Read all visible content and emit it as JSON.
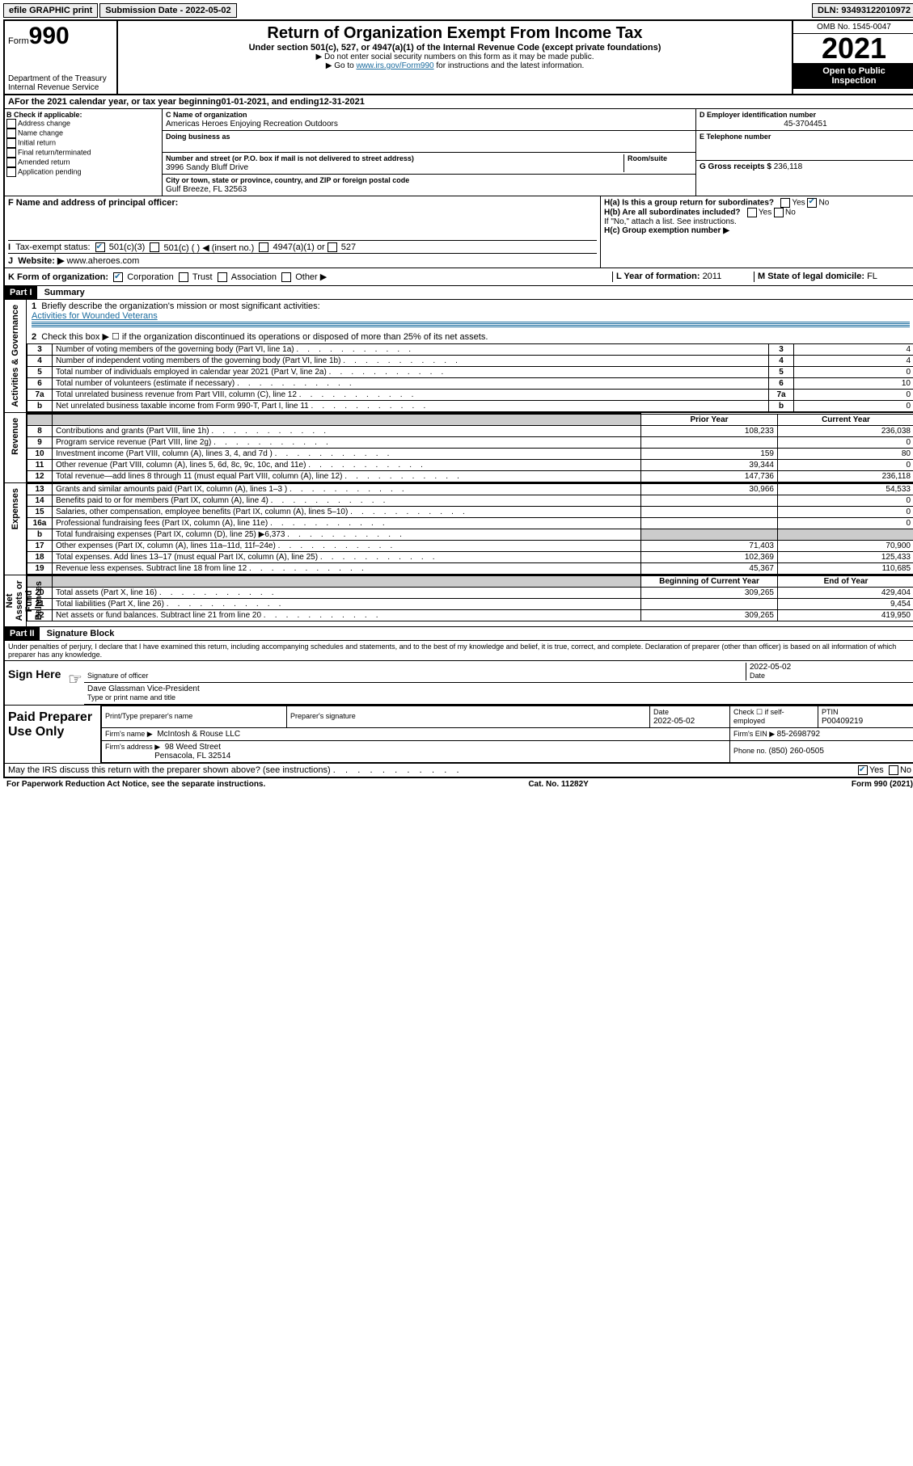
{
  "topbar": {
    "efile": "efile GRAPHIC print",
    "subdate_label": "Submission Date - ",
    "subdate": "2022-05-02",
    "dln_label": "DLN: ",
    "dln": "93493122010972"
  },
  "header": {
    "form_word": "Form",
    "form_no": "990",
    "dept": "Department of the Treasury",
    "irs": "Internal Revenue Service",
    "title": "Return of Organization Exempt From Income Tax",
    "sub1": "Under section 501(c), 527, or 4947(a)(1) of the Internal Revenue Code (except private foundations)",
    "sub2": "▶ Do not enter social security numbers on this form as it may be made public.",
    "sub3_pre": "▶ Go to ",
    "sub3_link": "www.irs.gov/Form990",
    "sub3_post": " for instructions and the latest information.",
    "omb": "OMB No. 1545-0047",
    "year": "2021",
    "inspect1": "Open to Public",
    "inspect2": "Inspection"
  },
  "A": {
    "text_pre": "For the 2021 calendar year, or tax year beginning ",
    "begin": "01-01-2021",
    "mid": " , and ending ",
    "end": "12-31-2021"
  },
  "B": {
    "label": "B Check if applicable:",
    "items": [
      "Address change",
      "Name change",
      "Initial return",
      "Final return/terminated",
      "Amended return",
      "Application pending"
    ]
  },
  "C": {
    "label": "C Name of organization",
    "name": "Americas Heroes Enjoying Recreation Outdoors",
    "dba_label": "Doing business as",
    "street_label": "Number and street (or P.O. box if mail is not delivered to street address)",
    "room_label": "Room/suite",
    "street": "3996 Sandy Bluff Drive",
    "city_label": "City or town, state or province, country, and ZIP or foreign postal code",
    "city": "Gulf Breeze, FL  32563"
  },
  "D": {
    "label": "D Employer identification number",
    "val": "45-3704451"
  },
  "E": {
    "label": "E Telephone number"
  },
  "G": {
    "label": "G Gross receipts $ ",
    "val": "236,118"
  },
  "F": {
    "label": "F  Name and address of principal officer:"
  },
  "H": {
    "a_label": "H(a)  Is this a group return for subordinates?",
    "b_label": "H(b)  Are all subordinates included?",
    "b_note": "If \"No,\" attach a list. See instructions.",
    "c_label": "H(c)  Group exemption number ▶",
    "yes": "Yes",
    "no": "No"
  },
  "I": {
    "label": "Tax-exempt status:",
    "opt1": "501(c)(3)",
    "opt2": "501(c) (  ) ◀ (insert no.)",
    "opt3": "4947(a)(1) or",
    "opt4": "527"
  },
  "J": {
    "label": "Website: ▶",
    "val": "www.aheroes.com"
  },
  "K": {
    "label": "K Form of organization:",
    "opts": [
      "Corporation",
      "Trust",
      "Association",
      "Other ▶"
    ],
    "checked": 0
  },
  "L": {
    "label": "L Year of formation: ",
    "val": "2011"
  },
  "M": {
    "label": "M State of legal domicile: ",
    "val": "FL"
  },
  "partI": {
    "hdr": "Part I",
    "title": "Summary"
  },
  "summary": {
    "q1_label": "Briefly describe the organization's mission or most significant activities:",
    "q1_val": "Activities for Wounded Veterans",
    "q2": "Check this box ▶ ☐  if the organization discontinued its operations or disposed of more than 25% of its net assets.",
    "side1": "Activities & Governance",
    "side2": "Revenue",
    "side3": "Expenses",
    "side4": "Net Assets or Fund Balances",
    "col_prior": "Prior Year",
    "col_current": "Current Year",
    "col_boy": "Beginning of Current Year",
    "col_eoy": "End of Year",
    "rows_top": [
      {
        "n": "3",
        "d": "Number of voting members of the governing body (Part VI, line 1a)",
        "v": "4"
      },
      {
        "n": "4",
        "d": "Number of independent voting members of the governing body (Part VI, line 1b)",
        "v": "4"
      },
      {
        "n": "5",
        "d": "Total number of individuals employed in calendar year 2021 (Part V, line 2a)",
        "v": "0"
      },
      {
        "n": "6",
        "d": "Total number of volunteers (estimate if necessary)",
        "v": "10"
      },
      {
        "n": "7a",
        "d": "Total unrelated business revenue from Part VIII, column (C), line 12",
        "v": "0"
      },
      {
        "n": "b",
        "d": "Net unrelated business taxable income from Form 990-T, Part I, line 11",
        "v": "0"
      }
    ],
    "rows_rev": [
      {
        "n": "8",
        "d": "Contributions and grants (Part VIII, line 1h)",
        "p": "108,233",
        "c": "236,038"
      },
      {
        "n": "9",
        "d": "Program service revenue (Part VIII, line 2g)",
        "p": "",
        "c": "0"
      },
      {
        "n": "10",
        "d": "Investment income (Part VIII, column (A), lines 3, 4, and 7d )",
        "p": "159",
        "c": "80"
      },
      {
        "n": "11",
        "d": "Other revenue (Part VIII, column (A), lines 5, 6d, 8c, 9c, 10c, and 11e)",
        "p": "39,344",
        "c": "0"
      },
      {
        "n": "12",
        "d": "Total revenue—add lines 8 through 11 (must equal Part VIII, column (A), line 12)",
        "p": "147,736",
        "c": "236,118"
      }
    ],
    "rows_exp": [
      {
        "n": "13",
        "d": "Grants and similar amounts paid (Part IX, column (A), lines 1–3 )",
        "p": "30,966",
        "c": "54,533"
      },
      {
        "n": "14",
        "d": "Benefits paid to or for members (Part IX, column (A), line 4)",
        "p": "",
        "c": "0"
      },
      {
        "n": "15",
        "d": "Salaries, other compensation, employee benefits (Part IX, column (A), lines 5–10)",
        "p": "",
        "c": "0"
      },
      {
        "n": "16a",
        "d": "Professional fundraising fees (Part IX, column (A), line 11e)",
        "p": "",
        "c": "0"
      },
      {
        "n": "b",
        "d": "Total fundraising expenses (Part IX, column (D), line 25) ▶6,373",
        "p": "GREY",
        "c": "GREY"
      },
      {
        "n": "17",
        "d": "Other expenses (Part IX, column (A), lines 11a–11d, 11f–24e)",
        "p": "71,403",
        "c": "70,900"
      },
      {
        "n": "18",
        "d": "Total expenses. Add lines 13–17 (must equal Part IX, column (A), line 25)",
        "p": "102,369",
        "c": "125,433"
      },
      {
        "n": "19",
        "d": "Revenue less expenses. Subtract line 18 from line 12",
        "p": "45,367",
        "c": "110,685"
      }
    ],
    "rows_net": [
      {
        "n": "20",
        "d": "Total assets (Part X, line 16)",
        "p": "309,265",
        "c": "429,404"
      },
      {
        "n": "21",
        "d": "Total liabilities (Part X, line 26)",
        "p": "",
        "c": "9,454"
      },
      {
        "n": "22",
        "d": "Net assets or fund balances. Subtract line 21 from line 20",
        "p": "309,265",
        "c": "419,950"
      }
    ]
  },
  "partII": {
    "hdr": "Part II",
    "title": "Signature Block"
  },
  "sig": {
    "jurat": "Under penalties of perjury, I declare that I have examined this return, including accompanying schedules and statements, and to the best of my knowledge and belief, it is true, correct, and complete. Declaration of preparer (other than officer) is based on all information of which preparer has any knowledge.",
    "sign_here": "Sign Here",
    "sig_officer": "Signature of officer",
    "date": "Date",
    "date_val": "2022-05-02",
    "name": "Dave Glassman  Vice-President",
    "name_label": "Type or print name and title"
  },
  "paid": {
    "title": "Paid Preparer Use Only",
    "h1": "Print/Type preparer's name",
    "h2": "Preparer's signature",
    "h3": "Date",
    "h3v": "2022-05-02",
    "h4": "Check ☐ if self-employed",
    "h5": "PTIN",
    "h5v": "P00409219",
    "firm_label": "Firm's name    ▶",
    "firm": "McIntosh & Rouse LLC",
    "ein_label": "Firm's EIN ▶ ",
    "ein": "85-2698792",
    "addr_label": "Firm's address ▶",
    "addr1": "98 Weed Street",
    "addr2": "Pensacola, FL  32514",
    "phone_label": "Phone no. ",
    "phone": "(850) 260-0505"
  },
  "footer": {
    "discuss": "May the IRS discuss this return with the preparer shown above? (see instructions)",
    "yes": "Yes",
    "no": "No",
    "pra": "For Paperwork Reduction Act Notice, see the separate instructions.",
    "cat": "Cat. No. 11282Y",
    "form": "Form 990 (2021)"
  }
}
